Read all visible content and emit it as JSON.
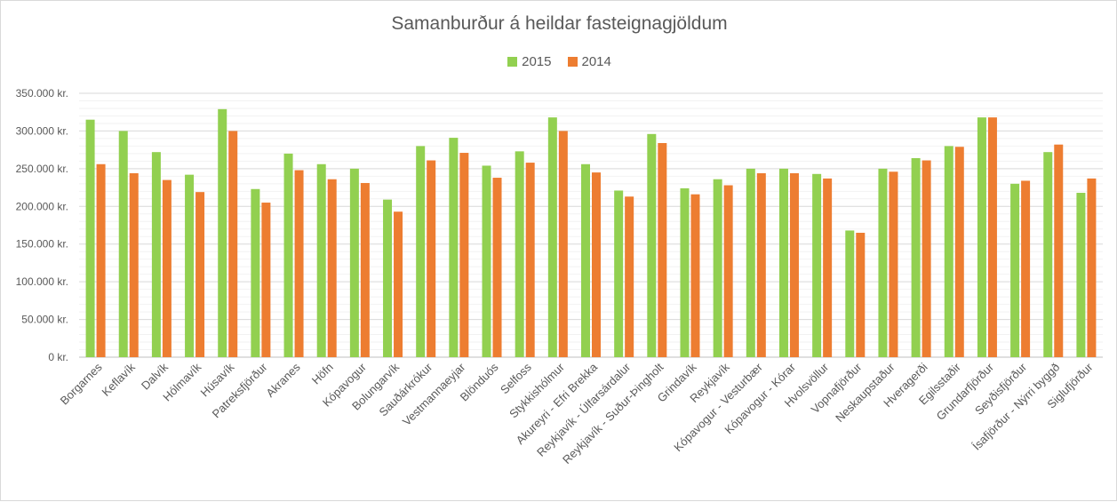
{
  "chart_data": {
    "type": "bar",
    "title": "Samanburður á heildar fasteignagjöldum",
    "ylim": [
      0,
      350000
    ],
    "y_ticks": [
      "0 kr.",
      "50.000 kr.",
      "100.000 kr.",
      "150.000 kr.",
      "200.000 kr.",
      "250.000 kr.",
      "300.000 kr.",
      "350.000 kr."
    ],
    "y_tick_values": [
      0,
      50000,
      100000,
      150000,
      200000,
      250000,
      300000,
      350000
    ],
    "grid": true,
    "legend_position": "top",
    "categories": [
      "Borgarnes",
      "Keflavík",
      "Dalvík",
      "Hólmavík",
      "Húsavík",
      "Patreksfjörður",
      "Akranes",
      "Höfn",
      "Kópavogur",
      "Bolungarvík",
      "Sauðárkrókur",
      "Vestmannaeyjar",
      "Blönduós",
      "Selfoss",
      "Stykkishólmur",
      "Akureyri - Efri Brekka",
      "Reykjavík - Úlfarsárdalur",
      "Reykjavík - Suður-Þingholt",
      "Grindavík",
      "Reykjavík",
      "Kópavogur - Vesturbær",
      "Kópavogur - Kórar",
      "Hvolsvöllur",
      "Vopnafjörður",
      "Neskaupstaður",
      "Hveragerði",
      "Egilsstaðir",
      "Grundarfjörður",
      "Seyðisfjörður",
      "Ísafjörður - Nýrri byggð",
      "Siglufjörður"
    ],
    "series": [
      {
        "name": "2015",
        "color": "#92d050",
        "values": [
          315000,
          300000,
          272000,
          242000,
          329000,
          223000,
          270000,
          256000,
          250000,
          209000,
          280000,
          291000,
          254000,
          273000,
          318000,
          256000,
          221000,
          296000,
          224000,
          236000,
          250000,
          250000,
          243000,
          168000,
          250000,
          264000,
          280000,
          318000,
          230000,
          272000,
          218000
        ]
      },
      {
        "name": "2014",
        "color": "#ed7d31",
        "values": [
          256000,
          244000,
          235000,
          219000,
          300000,
          205000,
          248000,
          236000,
          231000,
          193000,
          261000,
          271000,
          238000,
          258000,
          300000,
          245000,
          213000,
          284000,
          216000,
          228000,
          244000,
          244000,
          237000,
          165000,
          246000,
          261000,
          279000,
          318000,
          234000,
          282000,
          237000
        ]
      }
    ]
  }
}
